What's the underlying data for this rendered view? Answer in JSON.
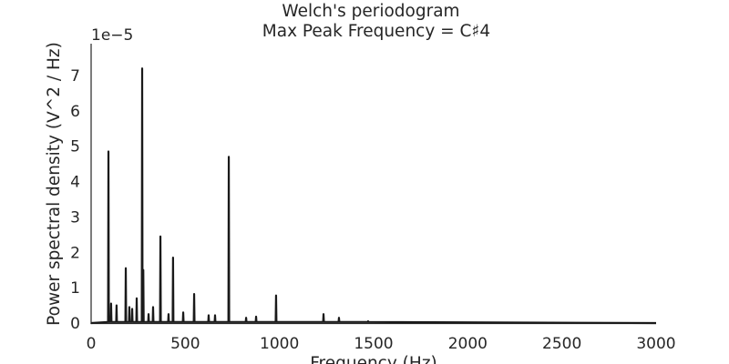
{
  "chart_data": {
    "type": "line",
    "title": "Welch's periodogram",
    "subtitle": "Max Peak Frequency = C♯4",
    "x_label": "Frequency (Hz)",
    "y_label": "Power spectral density (V^2 / Hz)",
    "y_offset_label": "1e−5",
    "color": "#1a1a1a",
    "grid": false,
    "xlim": [
      0,
      3000
    ],
    "xticks": [
      0,
      500,
      1000,
      1500,
      2000,
      2500,
      3000
    ],
    "ylim": [
      0,
      7.9
    ],
    "yticks": [
      0,
      1,
      2,
      3,
      4,
      5,
      6,
      7
    ],
    "x": [
      0,
      90,
      92,
      94,
      104,
      106,
      108,
      133,
      135,
      137,
      182,
      184,
      186,
      201,
      203,
      205,
      216,
      218,
      220,
      240,
      242,
      244,
      269,
      271,
      273,
      275,
      277,
      279,
      303,
      305,
      307,
      327,
      329,
      331,
      366,
      368,
      370,
      409,
      411,
      413,
      433,
      435,
      437,
      487,
      489,
      491,
      545,
      547,
      549,
      622,
      624,
      626,
      656,
      658,
      660,
      729,
      731,
      733,
      821,
      823,
      825,
      874,
      876,
      878,
      980,
      982,
      984,
      1232,
      1234,
      1236,
      1314,
      1316,
      1318,
      1469,
      1471,
      1473,
      3000
    ],
    "values": [
      0,
      0.03,
      4.85,
      0.03,
      0.03,
      0.55,
      0.03,
      0.03,
      0.5,
      0.03,
      0.03,
      1.55,
      0.03,
      0.03,
      0.45,
      0.03,
      0.03,
      0.4,
      0.03,
      0.03,
      0.7,
      0.03,
      0.03,
      7.2,
      0.03,
      0.03,
      1.5,
      0.03,
      0.03,
      0.25,
      0.03,
      0.03,
      0.45,
      0.03,
      0.03,
      2.45,
      0.03,
      0.03,
      0.25,
      0.03,
      0.03,
      1.85,
      0.03,
      0.03,
      0.3,
      0.03,
      0.03,
      0.82,
      0.03,
      0.03,
      0.22,
      0.03,
      0.03,
      0.22,
      0.03,
      0.03,
      4.7,
      0.03,
      0.03,
      0.15,
      0.03,
      0.03,
      0.18,
      0.03,
      0.03,
      0.78,
      0.03,
      0.03,
      0.25,
      0.03,
      0.03,
      0.15,
      0.03,
      0.03,
      0.05,
      0.03,
      0
    ]
  }
}
